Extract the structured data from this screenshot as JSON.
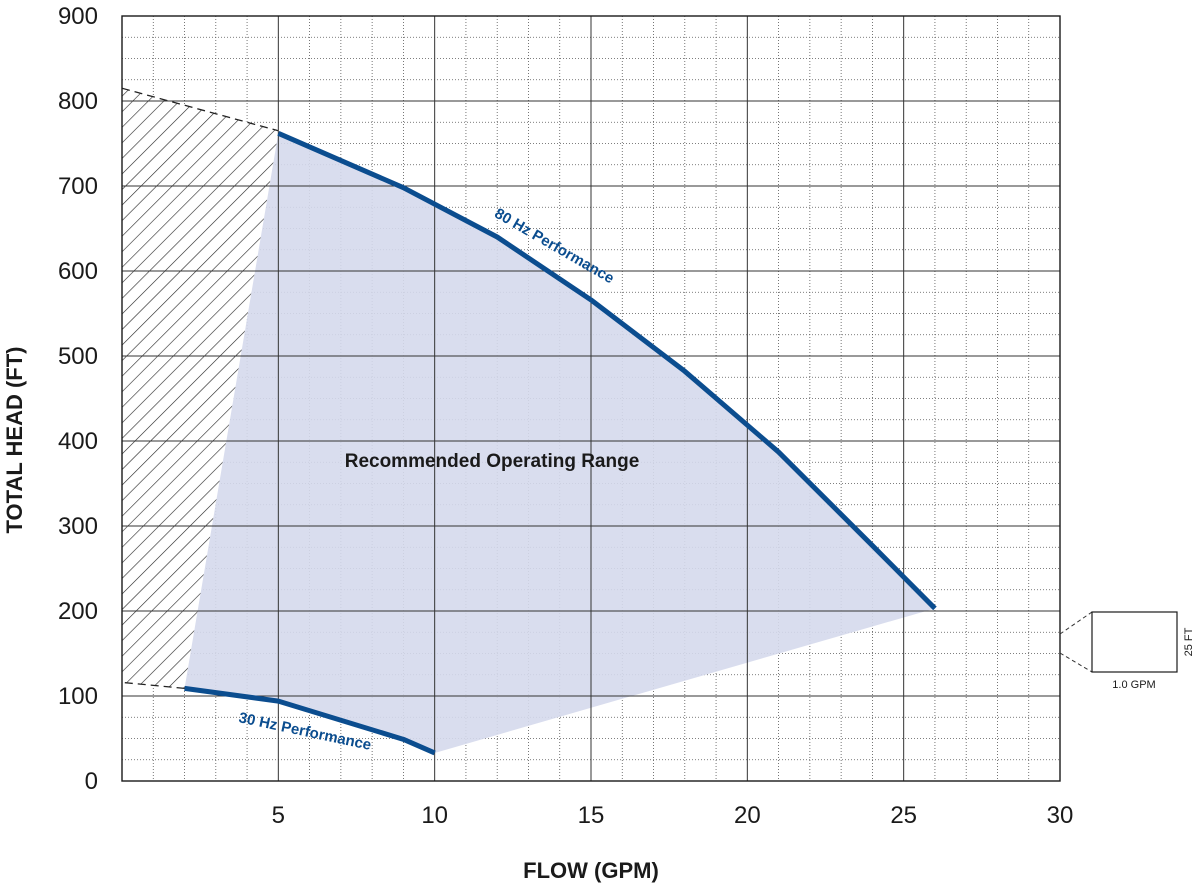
{
  "chart_data": {
    "type": "line",
    "xlabel": "FLOW (GPM)",
    "ylabel": "TOTAL HEAD (FT)",
    "xlim": [
      0,
      30
    ],
    "ylim": [
      0,
      900
    ],
    "x_ticks": [
      5,
      10,
      15,
      20,
      25,
      30
    ],
    "y_ticks": [
      0,
      100,
      200,
      300,
      400,
      500,
      600,
      700,
      800,
      900
    ],
    "x_minor_step": 1,
    "y_minor_step": 25,
    "grid": true,
    "colors": {
      "curve": "#0b4d8f",
      "region_fill": "#d5d9ec",
      "grid_major": "#333333",
      "grid_minor": "#555555",
      "hatch": "#222222"
    },
    "series": [
      {
        "name": "80 Hz Performance",
        "x": [
          5,
          9,
          12,
          15,
          18,
          21,
          24,
          26
        ],
        "y": [
          762,
          698,
          640,
          566,
          482,
          387,
          277,
          203
        ]
      },
      {
        "name": "30 Hz Performance",
        "x": [
          2,
          5,
          9,
          10
        ],
        "y": [
          109,
          94,
          49,
          33
        ]
      }
    ],
    "regions": [
      {
        "label": "Recommended Operating Range",
        "x": [
          5,
          9,
          12,
          15,
          18,
          21,
          24,
          26,
          10,
          9,
          5,
          2
        ],
        "y": [
          762,
          698,
          640,
          566,
          482,
          387,
          277,
          203,
          33,
          49,
          94,
          109
        ]
      }
    ],
    "hatched_region": {
      "x": [
        0,
        5,
        5,
        2,
        0
      ],
      "y": [
        815,
        765,
        762,
        109,
        116
      ]
    },
    "scale_box": {
      "x_label": "1.0 GPM",
      "y_label": "25 FT"
    }
  }
}
